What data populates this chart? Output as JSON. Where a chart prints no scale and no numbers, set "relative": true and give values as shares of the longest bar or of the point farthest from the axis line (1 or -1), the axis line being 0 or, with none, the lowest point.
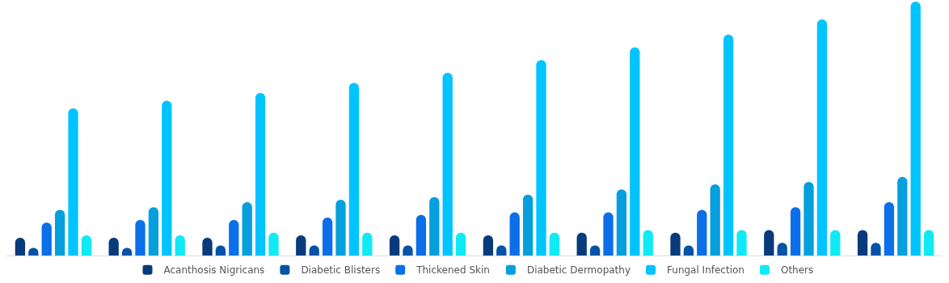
{
  "chart_data": {
    "type": "bar",
    "relative": true,
    "legend": "bottom",
    "categories": [
      null,
      null,
      null,
      null,
      null,
      null,
      null,
      null,
      null,
      null
    ],
    "series": [
      {
        "name": "Acanthosis Nigricans",
        "color": "#083b7c",
        "values": [
          0.07,
          0.07,
          0.07,
          0.08,
          0.08,
          0.08,
          0.09,
          0.09,
          0.1,
          0.1
        ]
      },
      {
        "name": "Diabetic Blisters",
        "color": "#0553a8",
        "values": [
          0.03,
          0.03,
          0.04,
          0.04,
          0.04,
          0.04,
          0.04,
          0.04,
          0.05,
          0.05
        ]
      },
      {
        "name": "Thickened Skin",
        "color": "#0a6fe8",
        "values": [
          0.13,
          0.14,
          0.14,
          0.15,
          0.16,
          0.17,
          0.17,
          0.18,
          0.19,
          0.21
        ]
      },
      {
        "name": "Diabetic Dermopathy",
        "color": "#059fdd",
        "values": [
          0.18,
          0.19,
          0.21,
          0.22,
          0.23,
          0.24,
          0.26,
          0.28,
          0.29,
          0.31
        ]
      },
      {
        "name": "Fungal Infection",
        "color": "#00c4ff",
        "values": [
          0.58,
          0.61,
          0.64,
          0.68,
          0.72,
          0.77,
          0.82,
          0.87,
          0.93,
          1
        ]
      },
      {
        "name": "Others",
        "color": "#10eaf5",
        "values": [
          0.08,
          0.08,
          0.09,
          0.09,
          0.09,
          0.09,
          0.1,
          0.1,
          0.1,
          0.1
        ]
      }
    ]
  }
}
